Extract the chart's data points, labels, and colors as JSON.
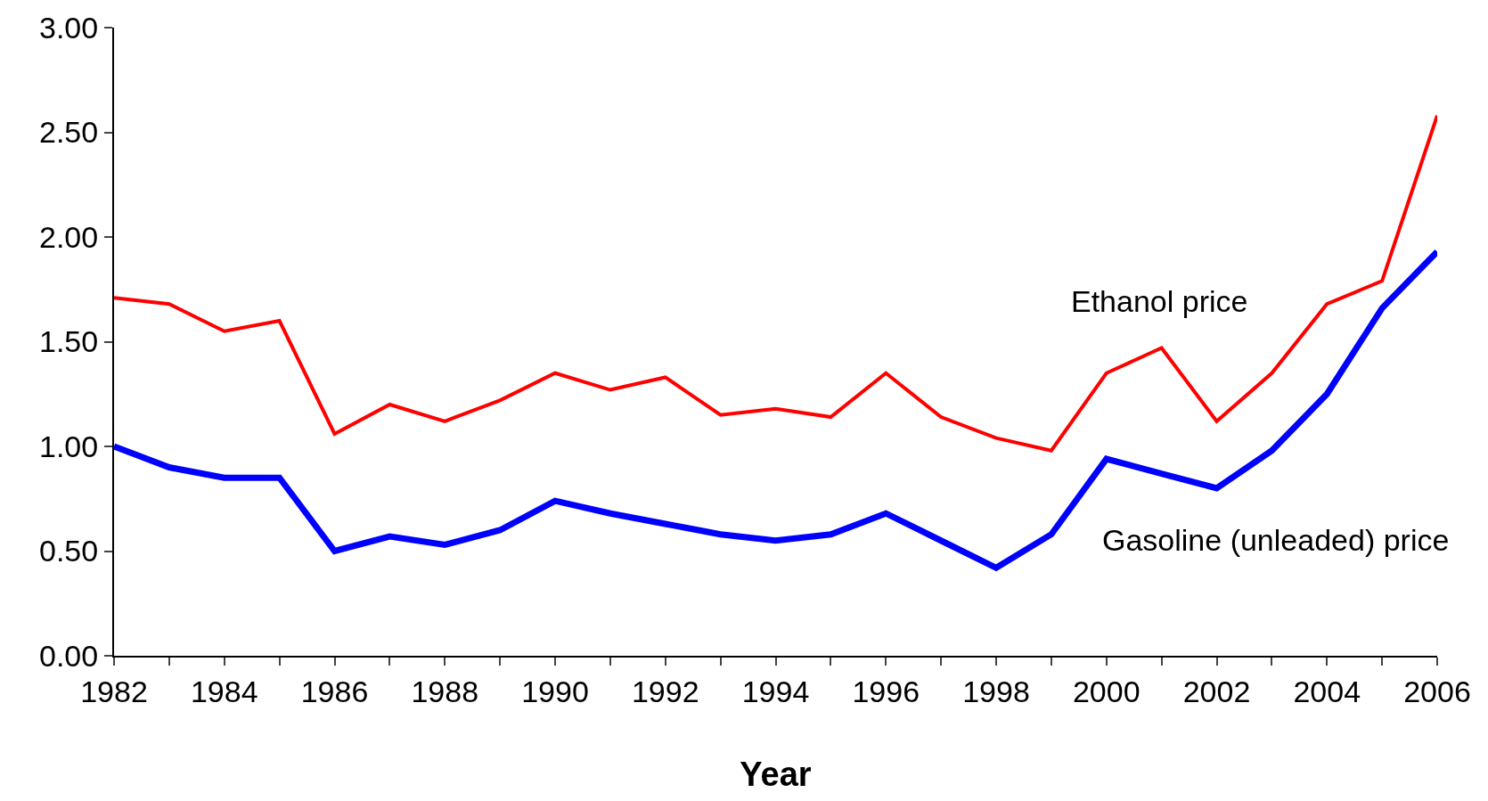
{
  "chart_data": {
    "type": "line",
    "xlabel": "Year",
    "x": [
      1982,
      1983,
      1984,
      1985,
      1986,
      1987,
      1988,
      1989,
      1990,
      1991,
      1992,
      1993,
      1994,
      1995,
      1996,
      1997,
      1998,
      1999,
      2000,
      2001,
      2002,
      2003,
      2004,
      2005,
      2006
    ],
    "series": [
      {
        "name": "Ethanol price",
        "color": "#ff0000",
        "values": [
          1.71,
          1.68,
          1.55,
          1.6,
          1.06,
          1.2,
          1.12,
          1.22,
          1.35,
          1.27,
          1.33,
          1.15,
          1.18,
          1.14,
          1.35,
          1.14,
          1.04,
          0.98,
          1.35,
          1.47,
          1.12,
          1.35,
          1.68,
          1.79,
          2.58
        ]
      },
      {
        "name": "Gasoline (unleaded) price",
        "color": "#0000ff",
        "values": [
          1.0,
          0.9,
          0.85,
          0.85,
          0.5,
          0.57,
          0.53,
          0.6,
          0.74,
          0.68,
          0.63,
          0.58,
          0.55,
          0.58,
          0.68,
          0.55,
          0.42,
          0.58,
          0.94,
          0.87,
          0.8,
          0.98,
          1.25,
          1.66,
          1.93
        ]
      }
    ],
    "xlim": [
      1982,
      2006
    ],
    "xticks": [
      1982,
      {
        "value": 1983,
        "label": null
      },
      1984,
      {
        "value": 1985,
        "label": null
      },
      1986,
      {
        "value": 1987,
        "label": null
      },
      1988,
      {
        "value": 1989,
        "label": null
      },
      1990,
      {
        "value": 1991,
        "label": null
      },
      1992,
      {
        "value": 1993,
        "label": null
      },
      1994,
      {
        "value": 1995,
        "label": null
      },
      1996,
      {
        "value": 1997,
        "label": null
      },
      1998,
      {
        "value": 1999,
        "label": null
      },
      2000,
      {
        "value": 2001,
        "label": null
      },
      2002,
      {
        "value": 2003,
        "label": null
      },
      2004,
      {
        "value": 2005,
        "label": null
      },
      2006
    ],
    "ylim": [
      0,
      3
    ],
    "yticks": [
      {
        "value": 0,
        "label": "0.00"
      },
      {
        "value": 0.5,
        "label": "0.50"
      },
      {
        "value": 1,
        "label": "1.00"
      },
      {
        "value": 1.5,
        "label": "1.50"
      },
      {
        "value": 2,
        "label": "2.00"
      },
      {
        "value": 2.5,
        "label": "2.50"
      },
      {
        "value": 3,
        "label": "3.00"
      }
    ],
    "legend": false,
    "marker": "none",
    "line_style": "solid"
  }
}
